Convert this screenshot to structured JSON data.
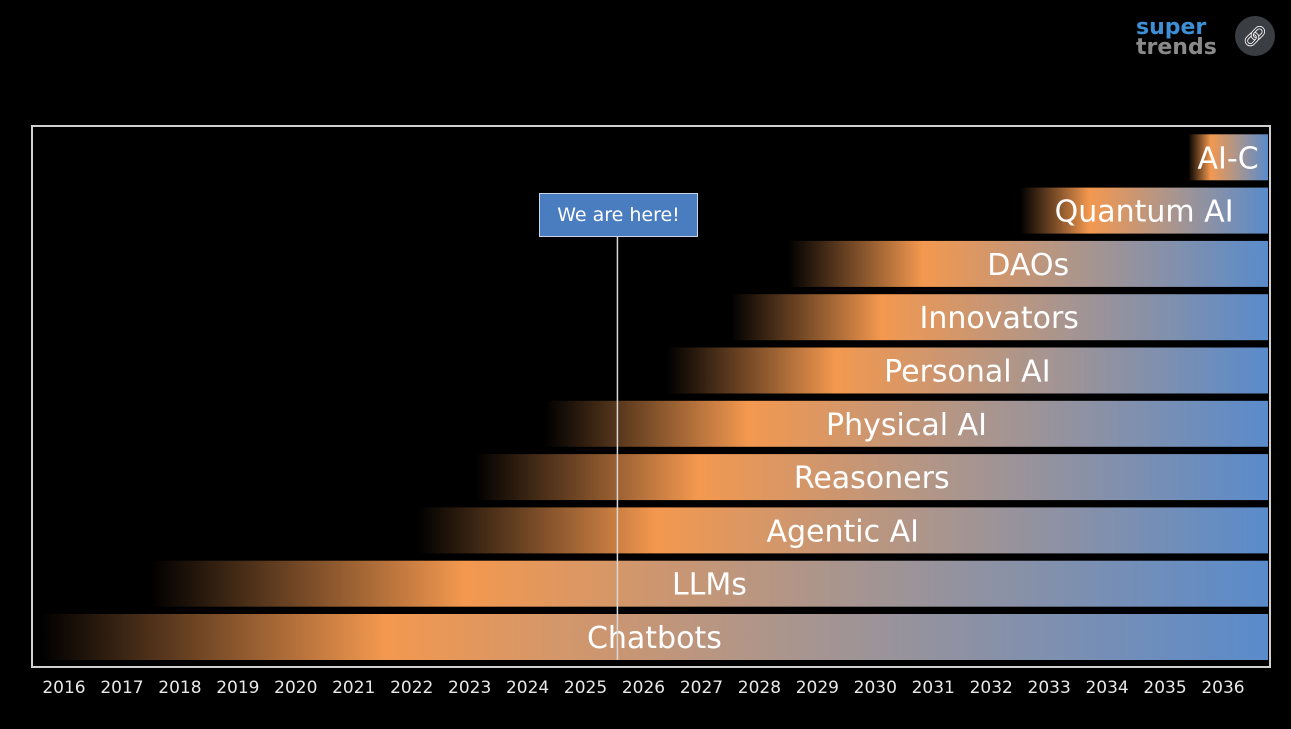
{
  "logo": {
    "line1": "super",
    "line2": "trends"
  },
  "share_icon": "link-icon",
  "marker_label": "We are here!",
  "colors": {
    "orange": "#f3984f",
    "mid": "#a8958f",
    "blue": "#5a8bcb",
    "frame": "#d0d0d0"
  },
  "chart_data": {
    "type": "timeline-bar",
    "title": "",
    "xlabel": "",
    "ylabel": "",
    "x_ticks": [
      "2016",
      "2017",
      "2018",
      "2019",
      "2020",
      "2021",
      "2022",
      "2023",
      "2024",
      "2025",
      "2026",
      "2027",
      "2028",
      "2029",
      "2030",
      "2031",
      "2032",
      "2033",
      "2034",
      "2035",
      "2036"
    ],
    "xlim": [
      2015.45,
      2036.8
    ],
    "marker_year": 2025.55,
    "series": [
      {
        "name": "Chatbots",
        "start": 2015.6
      },
      {
        "name": "LLMs",
        "start": 2017.5
      },
      {
        "name": "Agentic AI",
        "start": 2022.1
      },
      {
        "name": "Reasoners",
        "start": 2023.1
      },
      {
        "name": "Physical AI",
        "start": 2024.3
      },
      {
        "name": "Personal AI",
        "start": 2026.4
      },
      {
        "name": "Innovators",
        "start": 2027.5
      },
      {
        "name": "DAOs",
        "start": 2028.5
      },
      {
        "name": "Quantum AI",
        "start": 2032.5
      },
      {
        "name": "AI-C",
        "start": 2035.4
      }
    ]
  }
}
